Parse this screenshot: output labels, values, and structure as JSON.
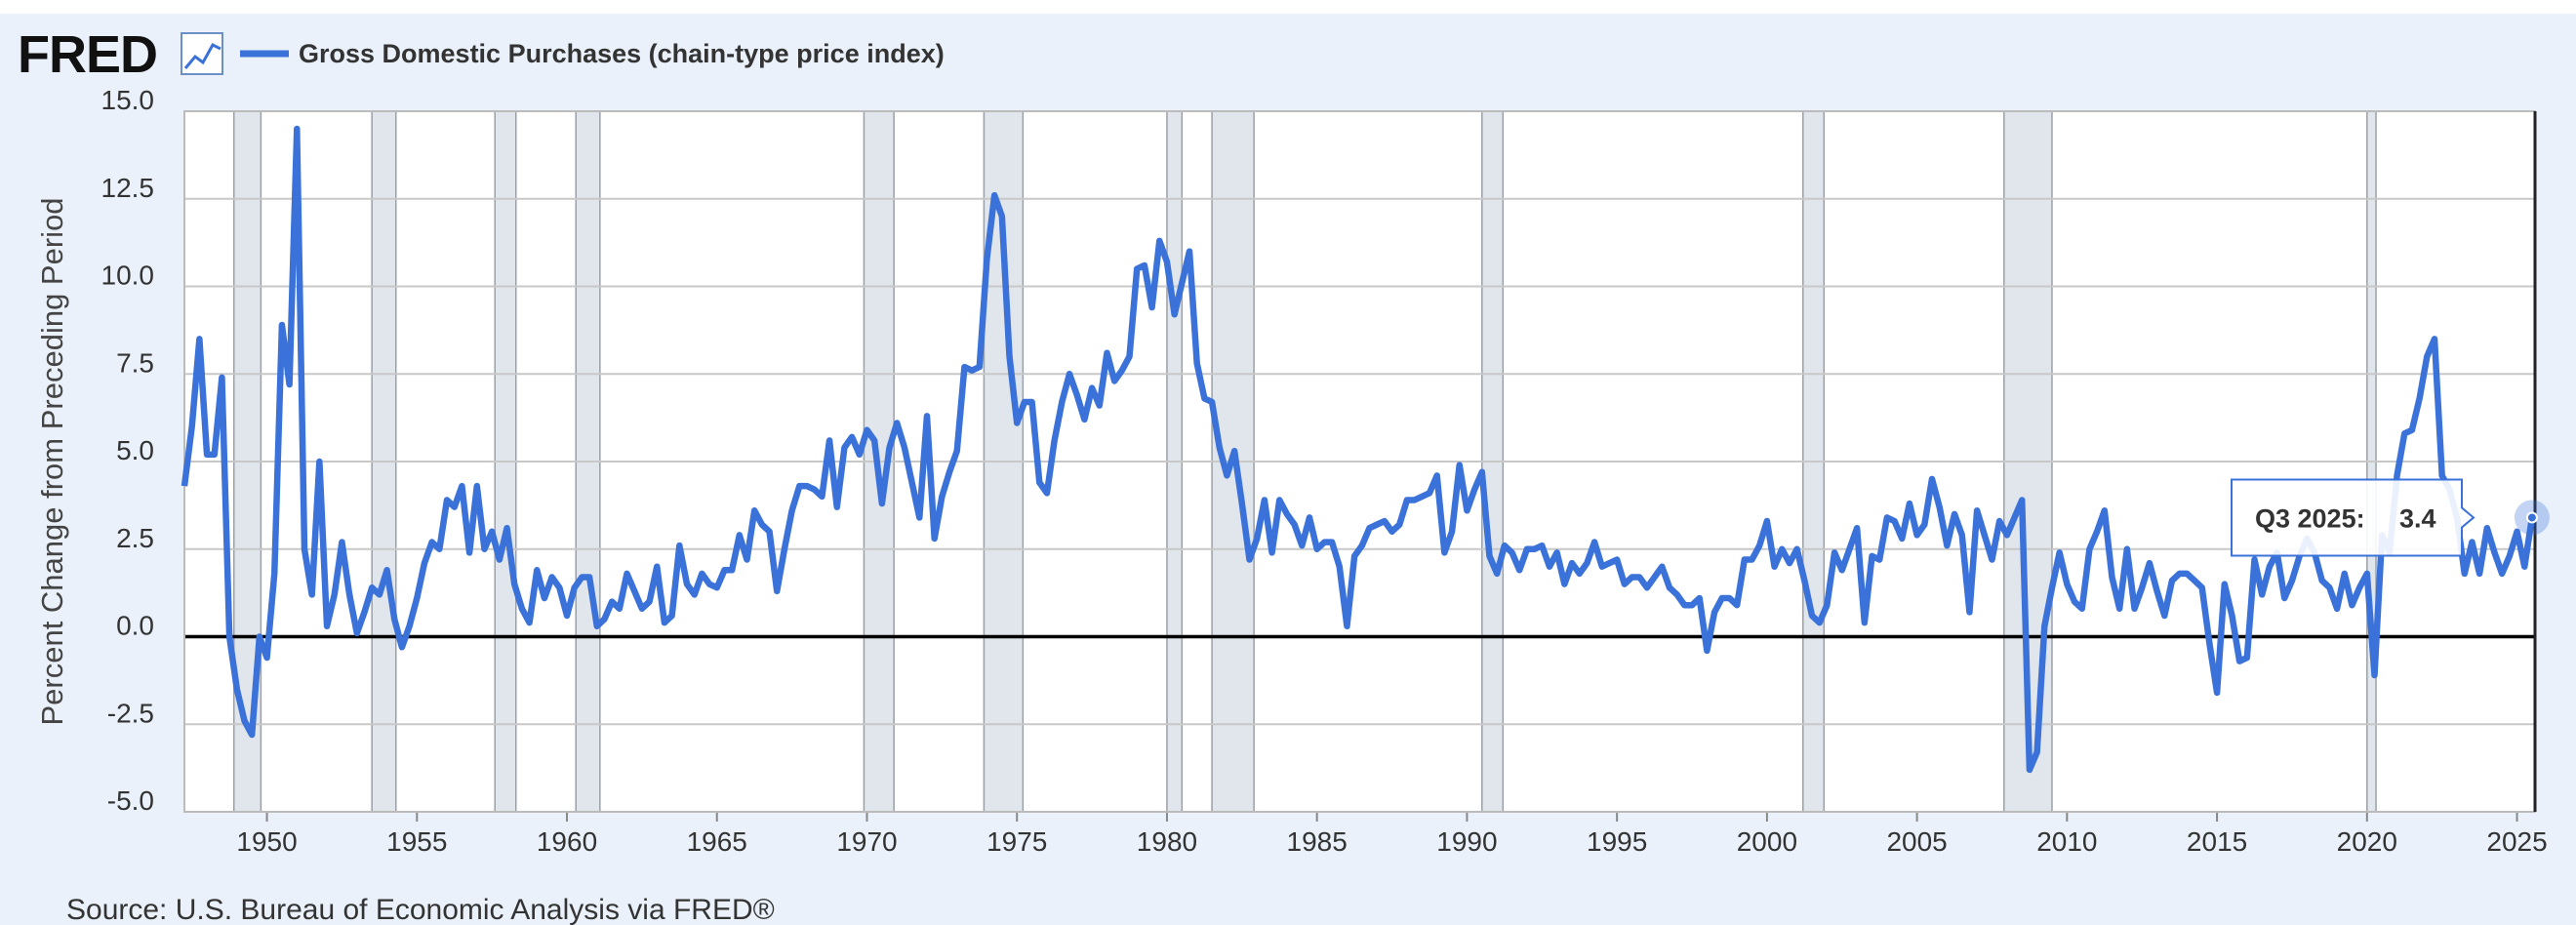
{
  "logo": "FRED",
  "chart_data": {
    "type": "line",
    "y_label": "Percent Change from Preceding Period",
    "source": "Source: U.S. Bureau of Economic Analysis via FRED®",
    "legend": "top-left",
    "grid": true,
    "x": [
      1947.25,
      1947.5,
      1947.75,
      1948,
      1948.25,
      1948.5,
      1948.75,
      1949,
      1949.25,
      1949.5,
      1949.75,
      1950,
      1950.25,
      1950.5,
      1950.75,
      1951,
      1951.25,
      1951.5,
      1951.75,
      1952,
      1952.25,
      1952.5,
      1952.75,
      1953,
      1953.25,
      1953.5,
      1953.75,
      1954,
      1954.25,
      1954.5,
      1954.75,
      1955,
      1955.25,
      1955.5,
      1955.75,
      1956,
      1956.25,
      1956.5,
      1956.75,
      1957,
      1957.25,
      1957.5,
      1957.75,
      1958,
      1958.25,
      1958.5,
      1958.75,
      1959,
      1959.25,
      1959.5,
      1959.75,
      1960,
      1960.25,
      1960.5,
      1960.75,
      1961,
      1961.25,
      1961.5,
      1961.75,
      1962,
      1962.25,
      1962.5,
      1962.75,
      1963,
      1963.25,
      1963.5,
      1963.75,
      1964,
      1964.25,
      1964.5,
      1964.75,
      1965,
      1965.25,
      1965.5,
      1965.75,
      1966,
      1966.25,
      1966.5,
      1966.75,
      1967,
      1967.25,
      1967.5,
      1967.75,
      1968,
      1968.25,
      1968.5,
      1968.75,
      1969,
      1969.25,
      1969.5,
      1969.75,
      1970,
      1970.25,
      1970.5,
      1970.75,
      1971,
      1971.25,
      1971.5,
      1971.75,
      1972,
      1972.25,
      1972.5,
      1972.75,
      1973,
      1973.25,
      1973.5,
      1973.75,
      1974,
      1974.25,
      1974.5,
      1974.75,
      1975,
      1975.25,
      1975.5,
      1975.75,
      1976,
      1976.25,
      1976.5,
      1976.75,
      1977,
      1977.25,
      1977.5,
      1977.75,
      1978,
      1978.25,
      1978.5,
      1978.75,
      1979,
      1979.25,
      1979.5,
      1979.75,
      1980,
      1980.25,
      1980.5,
      1980.75,
      1981,
      1981.25,
      1981.5,
      1981.75,
      1982,
      1982.25,
      1982.5,
      1982.75,
      1983,
      1983.25,
      1983.5,
      1983.75,
      1984,
      1984.25,
      1984.5,
      1984.75,
      1985,
      1985.25,
      1985.5,
      1985.75,
      1986,
      1986.25,
      1986.5,
      1986.75,
      1987,
      1987.25,
      1987.5,
      1987.75,
      1988,
      1988.25,
      1988.5,
      1988.75,
      1989,
      1989.25,
      1989.5,
      1989.75,
      1990,
      1990.25,
      1990.5,
      1990.75,
      1991,
      1991.25,
      1991.5,
      1991.75,
      1992,
      1992.25,
      1992.5,
      1992.75,
      1993,
      1993.25,
      1993.5,
      1993.75,
      1994,
      1994.25,
      1994.5,
      1994.75,
      1995,
      1995.25,
      1995.5,
      1995.75,
      1996,
      1996.25,
      1996.5,
      1996.75,
      1997,
      1997.25,
      1997.5,
      1997.75,
      1998,
      1998.25,
      1998.5,
      1998.75,
      1999,
      1999.25,
      1999.5,
      1999.75,
      2000,
      2000.25,
      2000.5,
      2000.75,
      2001,
      2001.25,
      2001.5,
      2001.75,
      2002,
      2002.25,
      2002.5,
      2002.75,
      2003,
      2003.25,
      2003.5,
      2003.75,
      2004,
      2004.25,
      2004.5,
      2004.75,
      2005,
      2005.25,
      2005.5,
      2005.75,
      2006,
      2006.25,
      2006.5,
      2006.75,
      2007,
      2007.25,
      2007.5,
      2007.75,
      2008,
      2008.25,
      2008.5,
      2008.75,
      2009,
      2009.25,
      2009.5,
      2009.75,
      2010,
      2010.25,
      2010.5,
      2010.75,
      2011,
      2011.25,
      2011.5,
      2011.75,
      2012,
      2012.25,
      2012.5,
      2012.75,
      2013,
      2013.25,
      2013.5,
      2013.75,
      2014,
      2014.25,
      2014.5,
      2014.75,
      2015,
      2015.25,
      2015.5,
      2015.75,
      2016,
      2016.25,
      2016.5,
      2016.75,
      2017,
      2017.25,
      2017.5,
      2017.75,
      2018,
      2018.25,
      2018.5,
      2018.75,
      2019,
      2019.25,
      2019.5,
      2019.75,
      2020,
      2020.25,
      2020.5,
      2020.75,
      2021,
      2021.25,
      2021.5,
      2021.75,
      2022,
      2022.25,
      2022.5,
      2022.75,
      2023,
      2023.25,
      2023.5,
      2023.75,
      2024,
      2024.25,
      2024.5,
      2024.75,
      2025,
      2025.25,
      2025.5
    ],
    "series": [
      {
        "name": "Gross Domestic Purchases (chain-type price index)",
        "color": "#3a72d9",
        "values": [
          4.3,
          6,
          8.5,
          5.2,
          5.2,
          7.4,
          0,
          -1.5,
          -2.4,
          -2.8,
          0,
          -0.6,
          1.8,
          8.9,
          7.2,
          14.5,
          2.5,
          1.2,
          5,
          0.3,
          1.2,
          2.7,
          1.2,
          0.1,
          0.7,
          1.4,
          1.2,
          1.9,
          0.5,
          -0.3,
          0.3,
          1.1,
          2.1,
          2.7,
          2.5,
          3.9,
          3.7,
          4.3,
          2.4,
          4.3,
          2.5,
          3,
          2.2,
          3.1,
          1.5,
          0.8,
          0.4,
          1.9,
          1.1,
          1.7,
          1.4,
          0.6,
          1.4,
          1.7,
          1.7,
          0.3,
          0.5,
          1,
          0.8,
          1.8,
          1.3,
          0.8,
          1,
          2,
          0.4,
          0.6,
          2.6,
          1.5,
          1.2,
          1.8,
          1.5,
          1.4,
          1.9,
          1.9,
          2.9,
          2.2,
          3.6,
          3.2,
          3,
          1.3,
          2.5,
          3.6,
          4.3,
          4.3,
          4.2,
          4,
          5.6,
          3.7,
          5.4,
          5.7,
          5.2,
          5.9,
          5.6,
          3.8,
          5.4,
          6.1,
          5.4,
          4.4,
          3.4,
          6.3,
          2.8,
          4,
          4.7,
          5.3,
          7.7,
          7.6,
          7.7,
          10.8,
          12.6,
          12,
          8,
          6.1,
          6.7,
          6.7,
          4.4,
          4.1,
          5.6,
          6.7,
          7.5,
          6.9,
          6.2,
          7.1,
          6.6,
          8.1,
          7.3,
          7.6,
          8,
          10.5,
          10.6,
          9.4,
          11.3,
          10.7,
          9.2,
          10.1,
          11,
          7.8,
          6.8,
          6.7,
          5.4,
          4.6,
          5.3,
          3.8,
          2.2,
          2.8,
          3.9,
          2.4,
          3.9,
          3.5,
          3.2,
          2.6,
          3.4,
          2.5,
          2.7,
          2.7,
          2,
          0.3,
          2.3,
          2.6,
          3.1,
          3.2,
          3.3,
          3,
          3.2,
          3.9,
          3.9,
          4,
          4.1,
          4.6,
          2.4,
          3,
          4.9,
          3.6,
          4.2,
          4.7,
          2.3,
          1.8,
          2.6,
          2.4,
          1.9,
          2.5,
          2.5,
          2.6,
          2,
          2.4,
          1.5,
          2.1,
          1.8,
          2.1,
          2.7,
          2,
          2.1,
          2.2,
          1.5,
          1.7,
          1.7,
          1.4,
          1.7,
          2,
          1.4,
          1.2,
          0.9,
          0.9,
          1.1,
          -0.4,
          0.7,
          1.1,
          1.1,
          0.9,
          2.2,
          2.2,
          2.6,
          3.3,
          2,
          2.5,
          2.1,
          2.5,
          1.6,
          0.6,
          0.4,
          0.9,
          2.4,
          1.9,
          2.5,
          3.1,
          0.4,
          2.3,
          2.2,
          3.4,
          3.3,
          2.8,
          3.8,
          2.9,
          3.2,
          4.5,
          3.7,
          2.6,
          3.5,
          2.9,
          0.7,
          3.6,
          2.9,
          2.2,
          3.3,
          2.9,
          3.4,
          3.9,
          -3.8,
          -3.3,
          0.3,
          1.4,
          2.4,
          1.5,
          1,
          0.8,
          2.5,
          3,
          3.6,
          1.7,
          0.8,
          2.5,
          0.8,
          1.4,
          2.1,
          1.3,
          0.6,
          1.6,
          1.8,
          1.8,
          1.6,
          1.4,
          -0.2,
          -1.6,
          1.5,
          0.6,
          -0.7,
          -0.6,
          2.2,
          1.2,
          2,
          2.4,
          1.1,
          1.6,
          2.3,
          2.8,
          2.4,
          1.6,
          1.4,
          0.8,
          1.8,
          0.9,
          1.4,
          1.8,
          -1.1,
          2.9,
          2.4,
          4.6,
          5.8,
          5.9,
          6.8,
          8,
          8.5,
          4.6,
          4.2,
          3.4,
          1.8,
          2.7,
          1.8,
          3.1,
          2.4,
          1.8,
          2.3,
          3,
          2,
          3.4
        ]
      }
    ],
    "recessions": [
      [
        1948.9,
        1949.8
      ],
      [
        1953.5,
        1954.3
      ],
      [
        1957.6,
        1958.3
      ],
      [
        1960.3,
        1961.1
      ],
      [
        1969.9,
        1970.9
      ],
      [
        1973.9,
        1975.2
      ],
      [
        1980,
        1980.5
      ],
      [
        1981.5,
        1982.9
      ],
      [
        1990.5,
        1991.2
      ],
      [
        2001.2,
        2001.9
      ],
      [
        2007.9,
        2009.5
      ],
      [
        2020,
        2020.3
      ]
    ],
    "recession_color": "#e1e5ec",
    "xlim": [
      1947.25,
      2025.6
    ],
    "xticks": [
      1950,
      1955,
      1960,
      1965,
      1970,
      1975,
      1980,
      1985,
      1990,
      1995,
      2000,
      2005,
      2010,
      2015,
      2020,
      2025
    ],
    "ylim": [
      -5,
      15
    ],
    "yticks": [
      {
        "value": -5,
        "label": "-5.0"
      },
      -2.5,
      {
        "value": 0,
        "label": "0.0"
      },
      2.5,
      {
        "value": 5,
        "label": "5.0"
      },
      7.5,
      {
        "value": 10,
        "label": "10.0"
      },
      12.5,
      {
        "value": 15,
        "label": "15.0"
      }
    ],
    "tooltip_label": "Q3 2025:"
  }
}
